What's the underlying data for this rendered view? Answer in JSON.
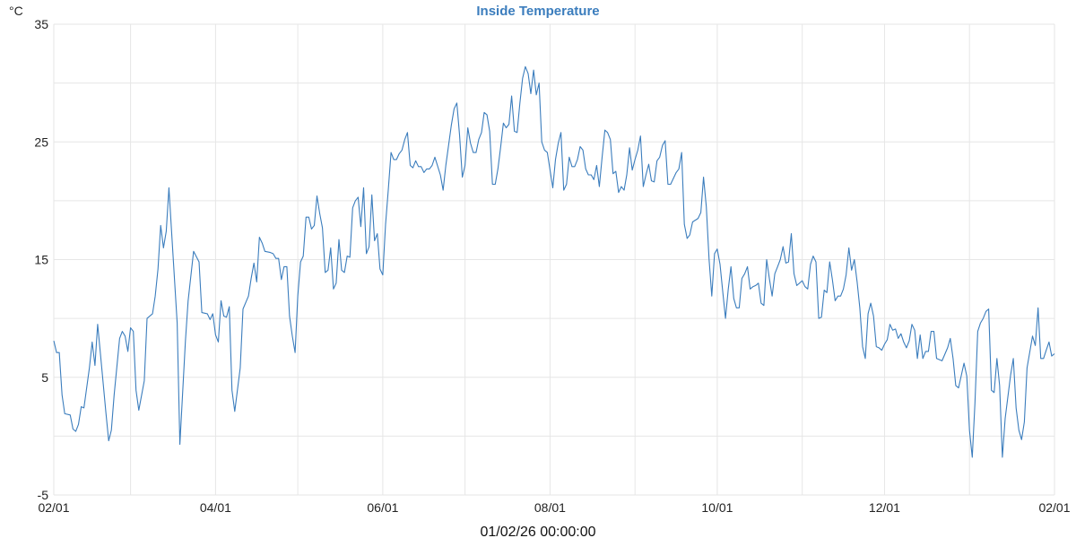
{
  "chart_data": {
    "type": "line",
    "title": "Inside Temperature",
    "ylabel": "°C",
    "xlabel": "01/02/26 00:00:00",
    "ylim": [
      -5,
      35
    ],
    "xlim": [
      "2025-02-01",
      "2026-02-01"
    ],
    "yticks": [
      -5,
      5,
      15,
      25,
      35
    ],
    "ygrid_step": 5,
    "xticks": [
      {
        "date": "2025-02-01",
        "label": "02/01"
      },
      {
        "date": "2025-04-01",
        "label": "04/01"
      },
      {
        "date": "2025-06-01",
        "label": "06/01"
      },
      {
        "date": "2025-08-01",
        "label": "08/01"
      },
      {
        "date": "2025-10-01",
        "label": "10/01"
      },
      {
        "date": "2025-12-01",
        "label": "12/01"
      },
      {
        "date": "2026-02-01",
        "label": "02/01"
      }
    ],
    "xgrid": "monthly",
    "grid": true,
    "colors": {
      "line": "#3b7dbd",
      "title": "#3b7dbd",
      "grid": "#e6e6e6"
    },
    "series": [
      {
        "x": [
          "2025-02-01",
          "2025-02-02",
          "2025-02-03",
          "2025-02-04",
          "2025-02-05",
          "2025-02-07",
          "2025-02-08",
          "2025-02-09",
          "2025-02-10",
          "2025-02-11",
          "2025-02-12",
          "2025-02-14",
          "2025-02-15",
          "2025-02-16",
          "2025-02-17",
          "2025-02-18",
          "2025-02-20",
          "2025-02-21",
          "2025-02-22",
          "2025-02-23",
          "2025-02-25",
          "2025-02-26",
          "2025-02-27",
          "2025-02-28",
          "2025-03-01",
          "2025-03-02",
          "2025-03-03",
          "2025-03-04",
          "2025-03-06",
          "2025-03-07",
          "2025-03-09",
          "2025-03-10",
          "2025-03-11",
          "2025-03-12",
          "2025-03-13",
          "2025-03-14",
          "2025-03-15",
          "2025-03-16",
          "2025-03-18",
          "2025-03-19",
          "2025-03-21",
          "2025-03-22",
          "2025-03-24",
          "2025-03-26",
          "2025-03-27",
          "2025-03-29",
          "2025-03-30",
          "2025-03-31",
          "2025-04-01",
          "2025-04-02",
          "2025-04-03",
          "2025-04-04",
          "2025-04-05",
          "2025-04-06",
          "2025-04-07",
          "2025-04-08",
          "2025-04-10",
          "2025-04-11",
          "2025-04-13",
          "2025-04-14",
          "2025-04-15",
          "2025-04-16",
          "2025-04-17",
          "2025-04-18",
          "2025-04-19",
          "2025-04-21",
          "2025-04-22",
          "2025-04-23",
          "2025-04-24",
          "2025-04-25",
          "2025-04-26",
          "2025-04-27",
          "2025-04-28",
          "2025-04-29",
          "2025-04-30",
          "2025-05-01",
          "2025-05-02",
          "2025-05-03",
          "2025-05-04",
          "2025-05-05",
          "2025-05-06",
          "2025-05-07",
          "2025-05-08",
          "2025-05-09",
          "2025-05-10",
          "2025-05-11",
          "2025-05-12",
          "2025-05-13",
          "2025-05-14",
          "2025-05-15",
          "2025-05-16",
          "2025-05-17",
          "2025-05-18",
          "2025-05-19",
          "2025-05-20",
          "2025-05-21",
          "2025-05-22",
          "2025-05-23",
          "2025-05-24",
          "2025-05-25",
          "2025-05-26",
          "2025-05-27",
          "2025-05-28",
          "2025-05-29",
          "2025-05-30",
          "2025-05-31",
          "2025-06-01",
          "2025-06-02",
          "2025-06-03",
          "2025-06-04",
          "2025-06-05",
          "2025-06-06",
          "2025-06-07",
          "2025-06-08",
          "2025-06-09",
          "2025-06-10",
          "2025-06-11",
          "2025-06-12",
          "2025-06-13",
          "2025-06-14",
          "2025-06-15",
          "2025-06-16",
          "2025-06-17",
          "2025-06-18",
          "2025-06-19",
          "2025-06-20",
          "2025-06-22",
          "2025-06-23",
          "2025-06-24",
          "2025-06-26",
          "2025-06-27",
          "2025-06-28",
          "2025-06-29",
          "2025-06-30",
          "2025-07-01",
          "2025-07-02",
          "2025-07-03",
          "2025-07-04",
          "2025-07-05",
          "2025-07-06",
          "2025-07-07",
          "2025-07-08",
          "2025-07-09",
          "2025-07-10",
          "2025-07-11",
          "2025-07-12",
          "2025-07-13",
          "2025-07-14",
          "2025-07-15",
          "2025-07-16",
          "2025-07-17",
          "2025-07-18",
          "2025-07-19",
          "2025-07-20",
          "2025-07-21",
          "2025-07-22",
          "2025-07-23",
          "2025-07-24",
          "2025-07-25",
          "2025-07-26",
          "2025-07-27",
          "2025-07-28",
          "2025-07-29",
          "2025-07-30",
          "2025-07-31",
          "2025-08-02",
          "2025-08-03",
          "2025-08-04",
          "2025-08-05",
          "2025-08-06",
          "2025-08-07",
          "2025-08-08",
          "2025-08-09",
          "2025-08-10",
          "2025-08-11",
          "2025-08-12",
          "2025-08-13",
          "2025-08-14",
          "2025-08-15",
          "2025-08-16",
          "2025-08-17",
          "2025-08-18",
          "2025-08-19",
          "2025-08-20",
          "2025-08-21",
          "2025-08-22",
          "2025-08-23",
          "2025-08-24",
          "2025-08-25",
          "2025-08-26",
          "2025-08-27",
          "2025-08-28",
          "2025-08-29",
          "2025-08-30",
          "2025-08-31",
          "2025-09-01",
          "2025-09-02",
          "2025-09-03",
          "2025-09-04",
          "2025-09-05",
          "2025-09-06",
          "2025-09-07",
          "2025-09-08",
          "2025-09-09",
          "2025-09-10",
          "2025-09-11",
          "2025-09-12",
          "2025-09-13",
          "2025-09-14",
          "2025-09-16",
          "2025-09-17",
          "2025-09-18",
          "2025-09-19",
          "2025-09-20",
          "2025-09-21",
          "2025-09-22",
          "2025-09-24",
          "2025-09-25",
          "2025-09-26",
          "2025-09-27",
          "2025-09-28",
          "2025-09-29",
          "2025-09-30",
          "2025-10-01",
          "2025-10-02",
          "2025-10-03",
          "2025-10-04",
          "2025-10-05",
          "2025-10-06",
          "2025-10-07",
          "2025-10-08",
          "2025-10-09",
          "2025-10-10",
          "2025-10-11",
          "2025-10-12",
          "2025-10-13",
          "2025-10-14",
          "2025-10-15",
          "2025-10-16",
          "2025-10-17",
          "2025-10-18",
          "2025-10-19",
          "2025-10-20",
          "2025-10-21",
          "2025-10-22",
          "2025-10-23",
          "2025-10-24",
          "2025-10-25",
          "2025-10-26",
          "2025-10-27",
          "2025-10-28",
          "2025-10-29",
          "2025-10-30",
          "2025-11-01",
          "2025-11-02",
          "2025-11-03",
          "2025-11-04",
          "2025-11-05",
          "2025-11-06",
          "2025-11-07",
          "2025-11-08",
          "2025-11-09",
          "2025-11-10",
          "2025-11-11",
          "2025-11-12",
          "2025-11-13",
          "2025-11-14",
          "2025-11-15",
          "2025-11-16",
          "2025-11-17",
          "2025-11-18",
          "2025-11-19",
          "2025-11-20",
          "2025-11-21",
          "2025-11-22",
          "2025-11-23",
          "2025-11-24",
          "2025-11-25",
          "2025-11-26",
          "2025-11-27",
          "2025-11-28",
          "2025-11-29",
          "2025-11-30",
          "2025-12-01",
          "2025-12-02",
          "2025-12-03",
          "2025-12-04",
          "2025-12-05",
          "2025-12-06",
          "2025-12-07",
          "2025-12-08",
          "2025-12-09",
          "2025-12-10",
          "2025-12-11",
          "2025-12-12",
          "2025-12-13",
          "2025-12-14",
          "2025-12-15",
          "2025-12-16",
          "2025-12-17",
          "2025-12-18",
          "2025-12-19",
          "2025-12-20",
          "2025-12-22",
          "2025-12-24",
          "2025-12-25",
          "2025-12-26",
          "2025-12-27",
          "2025-12-28",
          "2025-12-30",
          "2025-12-31",
          "2026-01-01",
          "2026-01-02",
          "2026-01-03",
          "2026-01-04",
          "2026-01-05",
          "2026-01-06",
          "2026-01-07",
          "2026-01-08",
          "2026-01-09",
          "2026-01-10",
          "2026-01-11",
          "2026-01-12",
          "2026-01-13",
          "2026-01-14",
          "2026-01-16",
          "2026-01-17",
          "2026-01-18",
          "2026-01-19",
          "2026-01-20",
          "2026-01-21",
          "2026-01-22",
          "2026-01-24",
          "2026-01-25",
          "2026-01-26",
          "2026-01-27",
          "2026-01-28",
          "2026-01-29",
          "2026-01-30",
          "2026-01-31",
          "2026-02-01"
        ],
        "y": [
          8.1,
          7.1,
          7.1,
          3.5,
          1.9,
          1.8,
          0.6,
          0.4,
          1.0,
          2.5,
          2.4,
          5.8,
          8.0,
          6.0,
          9.5,
          7.0,
          2.0,
          -0.4,
          0.5,
          3.5,
          8.3,
          8.9,
          8.5,
          7.2,
          9.2,
          8.9,
          3.9,
          2.2,
          4.7,
          10.0,
          10.4,
          11.9,
          14.2,
          17.9,
          16.0,
          17.4,
          21.1,
          17.2,
          9.6,
          -0.7,
          8.1,
          11.5,
          15.7,
          14.8,
          10.5,
          10.4,
          9.9,
          10.4,
          8.6,
          8.0,
          11.5,
          10.2,
          10.1,
          11.0,
          3.9,
          2.1,
          5.8,
          10.8,
          11.9,
          13.4,
          14.7,
          13.1,
          16.9,
          16.4,
          15.7,
          15.6,
          15.5,
          15.1,
          15.1,
          13.3,
          14.4,
          14.4,
          10.2,
          8.5,
          7.1,
          11.9,
          14.8,
          15.3,
          18.6,
          18.6,
          17.6,
          17.9,
          20.4,
          18.9,
          17.7,
          13.9,
          14.1,
          16.0,
          12.5,
          13.0,
          16.7,
          14.1,
          13.9,
          15.3,
          15.2,
          19.4,
          20.0,
          20.3,
          17.8,
          21.1,
          15.5,
          16.1,
          20.5,
          16.6,
          17.2,
          14.2,
          13.7,
          18.0,
          20.9,
          24.1,
          23.5,
          23.5,
          24.0,
          24.3,
          25.2,
          25.8,
          23.0,
          22.8,
          23.4,
          22.9,
          22.9,
          22.4,
          22.7,
          22.7,
          23.0,
          23.7,
          22.2,
          20.9,
          23.0,
          26.4,
          27.8,
          28.3,
          25.6,
          22.0,
          23.0,
          26.2,
          24.9,
          24.1,
          24.1,
          25.2,
          25.8,
          27.5,
          27.3,
          25.9,
          21.4,
          21.4,
          22.7,
          24.6,
          26.6,
          26.2,
          26.5,
          28.9,
          25.9,
          25.8,
          28.3,
          30.4,
          31.4,
          30.8,
          29.1,
          31.1,
          29.0,
          30.0,
          25.0,
          24.3,
          24.1,
          21.1,
          23.5,
          24.9,
          25.8,
          20.9,
          21.4,
          23.7,
          22.9,
          22.9,
          23.5,
          24.6,
          24.3,
          22.7,
          22.2,
          22.2,
          21.8,
          23.0,
          21.2,
          23.7,
          26.0,
          25.8,
          25.2,
          22.3,
          22.5,
          20.7,
          21.2,
          20.9,
          22.2,
          24.5,
          22.6,
          23.5,
          24.3,
          25.5,
          21.2,
          22.2,
          23.1,
          21.7,
          21.6,
          23.4,
          23.7,
          24.7,
          25.1,
          21.4,
          21.4,
          22.4,
          22.7,
          24.1,
          18.0,
          16.8,
          17.1,
          18.2,
          18.5,
          19.0,
          22.0,
          19.5,
          15.0,
          11.9,
          15.5,
          15.9,
          14.6,
          12.3,
          10.0,
          12.5,
          14.4,
          11.7,
          10.9,
          10.9,
          13.4,
          13.8,
          14.4,
          12.5,
          12.7,
          12.8,
          13.0,
          11.3,
          11.1,
          15.0,
          13.4,
          11.9,
          13.8,
          14.4,
          15.0,
          16.1,
          14.7,
          14.8,
          17.2,
          13.8,
          12.8,
          13.2,
          12.7,
          12.5,
          14.6,
          15.3,
          14.8,
          10.0,
          10.1,
          12.4,
          12.2,
          14.8,
          13.3,
          11.5,
          11.9,
          11.9,
          12.5,
          13.7,
          16.0,
          14.1,
          15.0,
          13.1,
          10.9,
          7.6,
          6.6,
          10.4,
          11.3,
          10.2,
          7.6,
          7.5,
          7.3,
          7.8,
          8.2,
          9.5,
          9.0,
          9.1,
          8.3,
          8.7,
          8.0,
          7.5,
          8.1,
          9.5,
          9.0,
          6.6,
          8.6,
          6.6,
          7.2,
          7.2,
          8.9,
          8.9,
          6.6,
          6.4,
          7.5,
          8.3,
          6.6,
          4.3,
          4.1,
          6.2,
          5.1,
          0.5,
          -1.8,
          2.8,
          8.9,
          9.6,
          10.0,
          10.6,
          10.8,
          3.9,
          3.7,
          6.6,
          4.3,
          -1.8,
          1.5,
          5.2,
          6.6,
          2.4,
          0.5,
          -0.3,
          1.2,
          5.8,
          8.5,
          7.7,
          10.9,
          6.6,
          6.6,
          7.3,
          8.0,
          6.8,
          7.0
        ]
      }
    ]
  }
}
